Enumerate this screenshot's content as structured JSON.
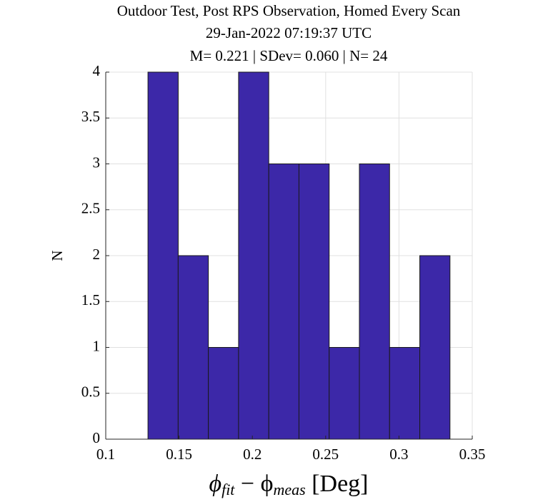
{
  "chart_data": {
    "type": "histogram",
    "title": [
      "Outdoor Test, Post RPS Observation, Homed Every Scan",
      "29-Jan-2022 07:19:37 UTC",
      "M= 0.221 | SDev= 0.060 | N= 24"
    ],
    "xlabel": [
      "ϕ",
      "fit",
      " − ϕ",
      "meas",
      " [Deg]"
    ],
    "ylabel": "N",
    "bins": [
      0.1288,
      0.1494,
      0.17,
      0.1906,
      0.2112,
      0.2318,
      0.2524,
      0.273,
      0.2936,
      0.3142,
      0.3348
    ],
    "counts": [
      4,
      2,
      1,
      4,
      3,
      3,
      1,
      3,
      1,
      2
    ],
    "color": "#3c28a8",
    "xlim": [
      0.1,
      0.35
    ],
    "xticks": [
      0.1,
      0.15,
      0.2,
      0.25,
      0.3,
      0.35
    ],
    "ylim": [
      0,
      4
    ],
    "yticks": [
      0,
      0.5,
      1,
      1.5,
      2,
      2.5,
      3,
      3.5,
      4
    ],
    "grid": true
  }
}
